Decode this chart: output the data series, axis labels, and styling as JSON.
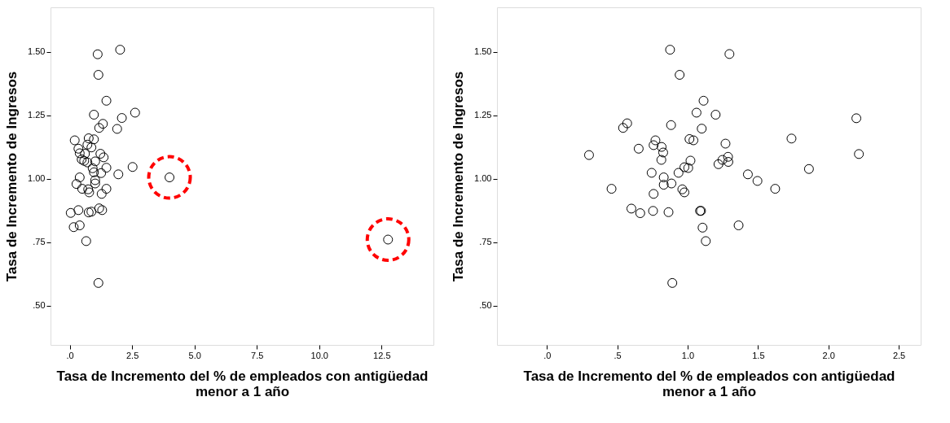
{
  "chart_data": [
    {
      "type": "scatter",
      "xlabel": "Tasa de Incremento del % de empleados con antigüedad menor a 1 año",
      "ylabel": "Tasa de Incremento de Ingresos",
      "xlim": [
        -0.77,
        14.58
      ],
      "ylim": [
        0.345,
        1.675
      ],
      "xticks": [
        {
          "value": 0,
          "label": ".0"
        },
        2.5,
        {
          "value": 5,
          "label": "5.0"
        },
        7.5,
        {
          "value": 10,
          "label": "10.0"
        },
        12.5
      ],
      "yticks": [
        {
          "value": 0.5,
          "label": ".50"
        },
        {
          "value": 0.75,
          "label": ".75"
        },
        {
          "value": 1,
          "label": "1.00"
        },
        {
          "value": 1.25,
          "label": "1.25"
        },
        {
          "value": 1.5,
          "label": "1.50"
        }
      ],
      "grid": false,
      "marker": "circle",
      "series": [
        {
          "color": "#000000",
          "x": [
            1.12,
            2.02,
            1.15,
            1.47,
            0.97,
            2.09,
            2.62,
            1.33,
            1.18,
            1.9,
            0.2,
            0.76,
            0.97,
            0.71,
            0.87,
            0.35,
            0.4,
            0.61,
            1.23,
            1.36,
            0.48,
            0.58,
            0.71,
            1.02,
            1.47,
            0.92,
            0.97,
            1.26,
            1.95,
            2.52,
            0.4,
            1.02,
            1.02,
            0.27,
            0.5,
            0.74,
            0.78,
            1.47,
            1.28,
            0.04,
            0.35,
            0.76,
            0.87,
            1.18,
            1.3,
            0.16,
            0.4,
            0.66,
            1.15,
            4.0,
            12.76
          ],
          "values": [
            1.49,
            1.508,
            1.409,
            1.307,
            1.252,
            1.239,
            1.26,
            1.216,
            1.2,
            1.196,
            1.151,
            1.159,
            1.155,
            1.134,
            1.123,
            1.118,
            1.1,
            1.098,
            1.098,
            1.084,
            1.076,
            1.07,
            1.064,
            1.068,
            1.043,
            1.041,
            1.025,
            1.022,
            1.017,
            1.046,
            1.005,
            0.994,
            0.981,
            0.979,
            0.96,
            0.958,
            0.946,
            0.96,
            0.94,
            0.865,
            0.876,
            0.867,
            0.87,
            0.883,
            0.876,
            0.809,
            0.816,
            0.754,
            0.589,
            1.005,
            0.76
          ]
        },
        {
          "color": "#ff0000",
          "line_style": "dashed",
          "x": [
            4.0,
            12.76
          ],
          "values": [
            1.005,
            0.76
          ]
        }
      ]
    },
    {
      "type": "scatter",
      "xlabel": "Tasa de Incremento del % de empleados con antigüedad menor a 1 año",
      "ylabel": "Tasa de Incremento de Ingresos",
      "xlim": [
        -0.355,
        2.656
      ],
      "ylim": [
        0.345,
        1.675
      ],
      "xticks": [
        {
          "value": 0,
          "label": ".0"
        },
        {
          "value": 0.5,
          "label": ".5"
        },
        {
          "value": 1,
          "label": "1.0"
        },
        1.5,
        {
          "value": 2,
          "label": "2.0"
        },
        2.5
      ],
      "yticks": [
        {
          "value": 0.5,
          "label": ".50"
        },
        {
          "value": 0.75,
          "label": ".75"
        },
        {
          "value": 1,
          "label": "1.00"
        },
        {
          "value": 1.25,
          "label": "1.25"
        },
        {
          "value": 1.5,
          "label": "1.50"
        }
      ],
      "grid": false,
      "marker": "circle",
      "series": [
        {
          "color": "#000000",
          "x": [
            0.875,
            1.297,
            0.943,
            1.113,
            1.063,
            1.199,
            0.57,
            0.541,
            0.882,
            1.1,
            1.013,
            1.041,
            0.771,
            0.758,
            0.815,
            0.826,
            0.652,
            0.299,
            1.269,
            0.813,
            1.02,
            1.287,
            1.247,
            1.289,
            1.219,
            0.977,
            1.004,
            0.935,
            0.744,
            0.83,
            0.83,
            0.885,
            0.459,
            0.758,
            0.962,
            0.977,
            1.428,
            0.6,
            0.663,
            0.754,
            0.864,
            1.088,
            1.095,
            1.106,
            1.129,
            1.362,
            0.891,
            1.496,
            1.622,
            1.738,
            1.862,
            2.199,
            2.217
          ],
          "values": [
            1.508,
            1.491,
            1.409,
            1.307,
            1.26,
            1.252,
            1.218,
            1.2,
            1.211,
            1.197,
            1.156,
            1.151,
            1.151,
            1.132,
            1.125,
            1.103,
            1.118,
            1.093,
            1.138,
            1.074,
            1.071,
            1.086,
            1.074,
            1.066,
            1.057,
            1.045,
            1.042,
            1.023,
            1.023,
            1.005,
            0.976,
            0.981,
            0.96,
            0.94,
            0.958,
            0.946,
            1.017,
            0.882,
            0.864,
            0.873,
            0.868,
            0.873,
            0.873,
            0.807,
            0.754,
            0.816,
            0.589,
            0.991,
            0.96,
            1.158,
            1.038,
            1.238,
            1.097
          ]
        }
      ]
    }
  ]
}
